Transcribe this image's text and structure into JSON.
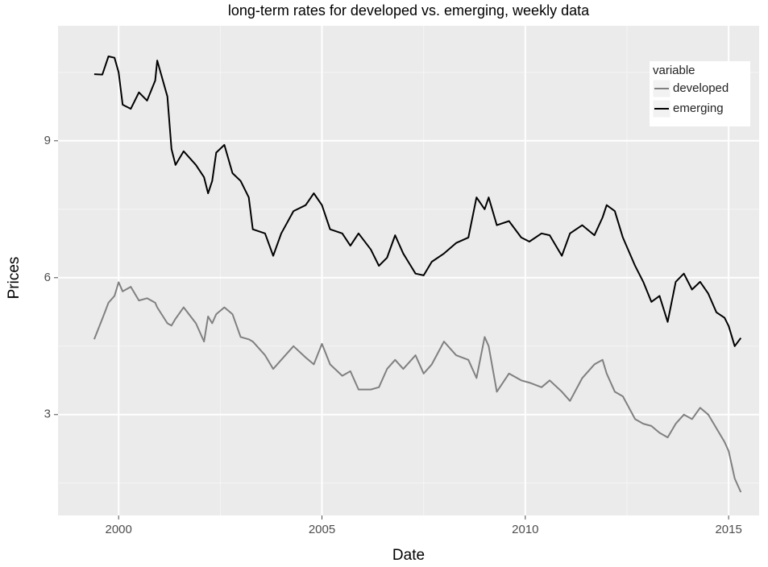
{
  "chart_data": {
    "type": "line",
    "title": "long-term rates for developed vs. emerging, weekly data",
    "x_label": "Date",
    "y_label": "Prices",
    "xlim": [
      1998.51,
      2015.75
    ],
    "xticks": [
      2000,
      2005,
      2010,
      2015
    ],
    "ylim": [
      0.79,
      11.52
    ],
    "yticks": [
      3,
      6,
      9
    ],
    "grid": true,
    "legend_title": "variable",
    "legend_position": "top-right",
    "x": [
      1999.4,
      1999.6,
      1999.75,
      1999.9,
      2000.0,
      2000.1,
      2000.3,
      2000.5,
      2000.7,
      2000.9,
      2000.95,
      2001.2,
      2001.3,
      2001.4,
      2001.6,
      2001.9,
      2002.1,
      2002.2,
      2002.3,
      2002.4,
      2002.6,
      2002.8,
      2003.0,
      2003.2,
      2003.3,
      2003.6,
      2003.8,
      2004.0,
      2004.3,
      2004.6,
      2004.8,
      2005.0,
      2005.2,
      2005.5,
      2005.7,
      2005.9,
      2006.2,
      2006.4,
      2006.6,
      2006.8,
      2007.0,
      2007.3,
      2007.5,
      2007.7,
      2008.0,
      2008.3,
      2008.6,
      2008.8,
      2009.0,
      2009.1,
      2009.3,
      2009.6,
      2009.9,
      2010.1,
      2010.4,
      2010.6,
      2010.9,
      2011.1,
      2011.4,
      2011.7,
      2011.9,
      2012.0,
      2012.2,
      2012.4,
      2012.7,
      2012.9,
      2013.1,
      2013.3,
      2013.5,
      2013.7,
      2013.9,
      2014.1,
      2014.3,
      2014.5,
      2014.7,
      2014.9,
      2015.0,
      2015.15,
      2015.3
    ],
    "series": [
      {
        "name": "developed",
        "color": "#808080",
        "values": [
          4.65,
          5.1,
          5.45,
          5.6,
          5.9,
          5.7,
          5.8,
          5.5,
          5.55,
          5.45,
          5.35,
          5.0,
          4.95,
          5.1,
          5.35,
          5.0,
          4.6,
          5.15,
          5.0,
          5.2,
          5.35,
          5.2,
          4.7,
          4.65,
          4.6,
          4.3,
          4.0,
          4.2,
          4.5,
          4.25,
          4.1,
          4.55,
          4.1,
          3.85,
          3.95,
          3.55,
          3.55,
          3.6,
          4.0,
          4.2,
          4.0,
          4.3,
          3.9,
          4.1,
          4.6,
          4.3,
          4.2,
          3.8,
          4.7,
          4.5,
          3.5,
          3.9,
          3.75,
          3.7,
          3.6,
          3.75,
          3.5,
          3.3,
          3.8,
          4.1,
          4.2,
          3.9,
          3.5,
          3.4,
          2.9,
          2.8,
          2.75,
          2.6,
          2.5,
          2.8,
          3.0,
          2.9,
          3.15,
          3.0,
          2.7,
          2.4,
          2.2,
          1.6,
          1.3
        ]
      },
      {
        "name": "emerging",
        "color": "#000000",
        "values": [
          10.46,
          10.45,
          10.85,
          10.82,
          10.5,
          9.79,
          9.7,
          10.06,
          9.88,
          10.32,
          10.76,
          9.97,
          8.82,
          8.47,
          8.77,
          8.47,
          8.2,
          7.85,
          8.12,
          8.74,
          8.91,
          8.29,
          8.12,
          7.76,
          7.06,
          6.97,
          6.48,
          6.97,
          7.46,
          7.59,
          7.85,
          7.59,
          7.06,
          6.97,
          6.7,
          6.97,
          6.62,
          6.26,
          6.44,
          6.93,
          6.53,
          6.09,
          6.05,
          6.35,
          6.53,
          6.76,
          6.88,
          7.76,
          7.5,
          7.76,
          7.15,
          7.24,
          6.88,
          6.79,
          6.97,
          6.93,
          6.48,
          6.97,
          7.15,
          6.93,
          7.32,
          7.59,
          7.46,
          6.88,
          6.26,
          5.91,
          5.47,
          5.6,
          5.03,
          5.91,
          6.09,
          5.74,
          5.91,
          5.65,
          5.24,
          5.12,
          4.94,
          4.5,
          4.68
        ]
      }
    ]
  }
}
